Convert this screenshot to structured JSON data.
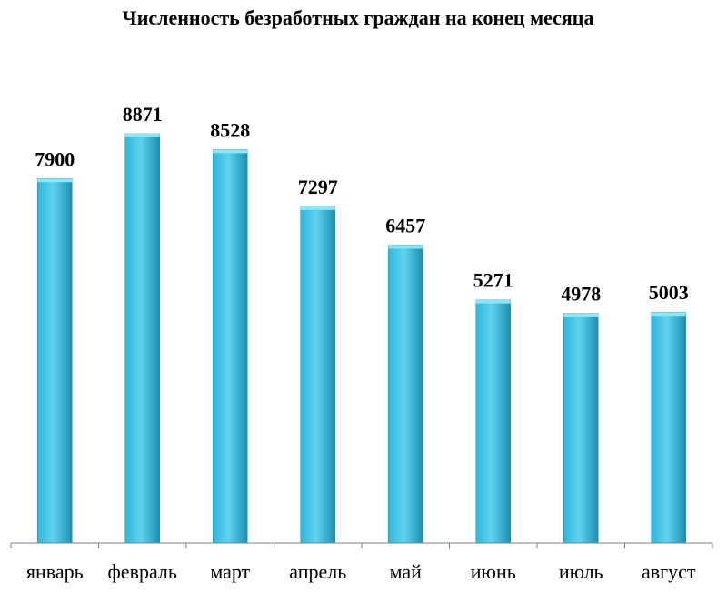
{
  "chart_data": {
    "type": "bar",
    "title": "Численность безработных граждан на конец месяца",
    "xlabel": "",
    "ylabel": "",
    "categories": [
      "январь",
      "февраль",
      "март",
      "апрель",
      "май",
      "июнь",
      "июль",
      "август"
    ],
    "values": [
      7900,
      8871,
      8528,
      7297,
      6457,
      5271,
      4978,
      5003
    ],
    "ylim": [
      0,
      9500
    ],
    "grid": false,
    "legend": "none",
    "colors": {
      "bar_light": "#5fd3ee",
      "bar_mid": "#2fb7dc",
      "bar_dark": "#1a8fb3",
      "bar_top": "#8ae6f8"
    }
  }
}
